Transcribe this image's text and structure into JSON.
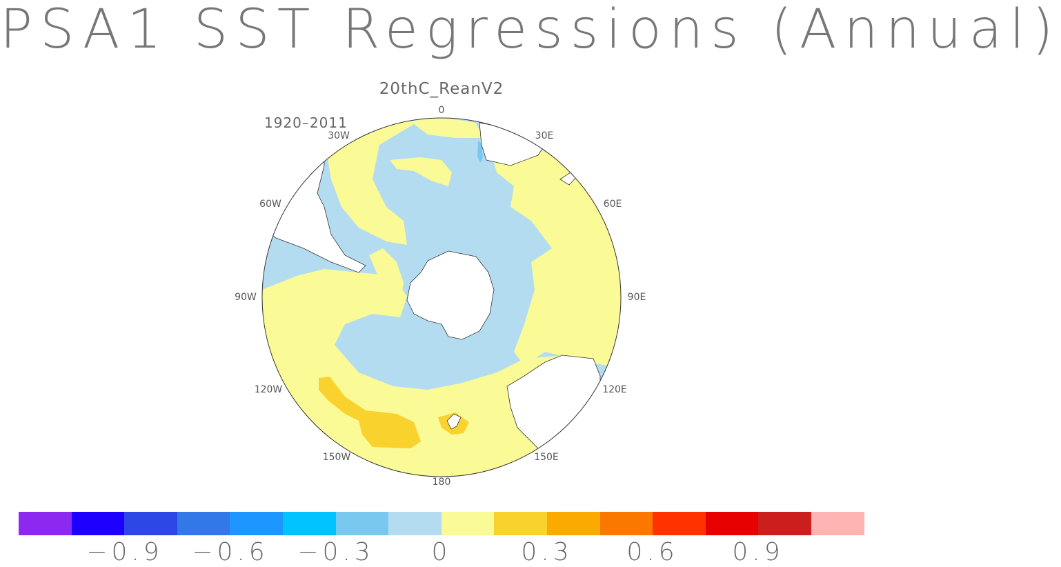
{
  "header": {
    "title": "PSA1 SST Regressions (Annual)",
    "subtitle": "20thC_ReanV2",
    "period": "1920–2011"
  },
  "map": {
    "projection": "south-polar-stereographic",
    "longitude_labels": [
      "0",
      "30E",
      "60E",
      "90E",
      "120E",
      "150E",
      "180",
      "150W",
      "120W",
      "90W",
      "60W",
      "30W"
    ],
    "colors": {
      "ocean_near_zero_negative": "#b4dcf0",
      "ocean_near_zero_positive": "#fafa96",
      "ocean_moderate_positive": "#fad22d",
      "ocean_weak_negative_patch": "#78c8f0",
      "land": "#ffffff",
      "coast": "#333333"
    }
  },
  "colorbar": {
    "colors": [
      "#8c28f0",
      "#1e00ff",
      "#2d46e6",
      "#3278e6",
      "#1e96ff",
      "#00c3ff",
      "#78c8f0",
      "#b4dcf0",
      "#fafa96",
      "#fad22d",
      "#faaa00",
      "#fa7800",
      "#ff3200",
      "#e60000",
      "#cd1e1e",
      "#ffb4b4"
    ],
    "labels": [
      "−0.9",
      "−0.6",
      "−0.3",
      "0",
      "0.3",
      "0.6",
      "0.9"
    ]
  }
}
